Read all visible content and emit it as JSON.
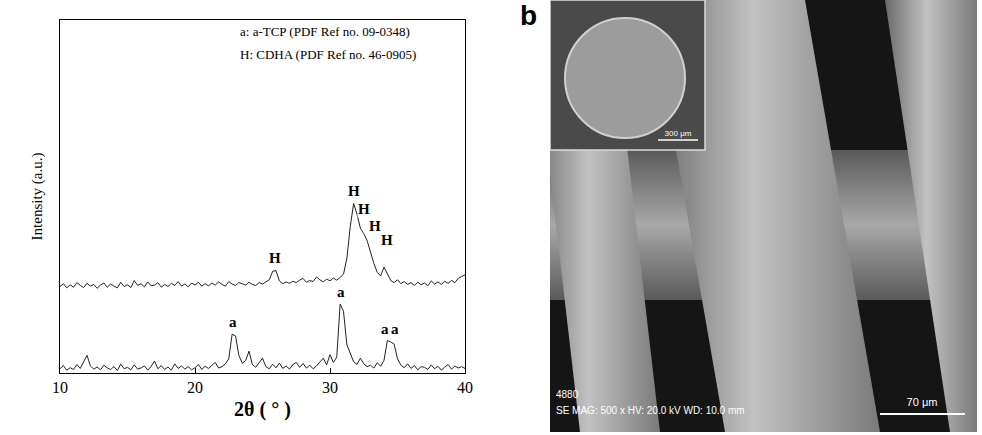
{
  "chart_data": {
    "type": "line",
    "panel": "a",
    "x_label": "2θ ( ° )",
    "y_label": "Intensity (a.u.)",
    "xlim": [
      10,
      40
    ],
    "xticks": [
      10,
      20,
      30,
      40
    ],
    "ylim": [
      0,
      100
    ],
    "grid": false,
    "tick_labels": "x",
    "key": [
      "a: a-TCP (PDF Ref no. 09-0348)",
      "H: CDHA (PDF Ref no. 46-0905)"
    ],
    "annotations": [
      {
        "text": "H",
        "x": 25.9,
        "y": 30
      },
      {
        "text": "H",
        "x": 31.75,
        "y": 49
      },
      {
        "text": "H",
        "x": 32.55,
        "y": 44
      },
      {
        "text": "H",
        "x": 33.3,
        "y": 39
      },
      {
        "text": "H",
        "x": 34.2,
        "y": 35
      },
      {
        "text": "a",
        "x": 22.85,
        "y": 12
      },
      {
        "text": "a",
        "x": 30.85,
        "y": 20.5
      },
      {
        "text": "a",
        "x": 34.1,
        "y": 10
      },
      {
        "text": "a",
        "x": 34.85,
        "y": 10
      }
    ],
    "x": [
      10,
      10.25,
      10.5,
      10.75,
      11,
      11.25,
      11.5,
      11.75,
      12,
      12.25,
      12.5,
      12.75,
      13,
      13.25,
      13.5,
      13.75,
      14,
      14.25,
      14.5,
      14.75,
      15,
      15.25,
      15.5,
      15.75,
      16,
      16.25,
      16.5,
      16.75,
      17,
      17.25,
      17.5,
      17.75,
      18,
      18.25,
      18.5,
      18.75,
      19,
      19.25,
      19.5,
      19.75,
      20,
      20.25,
      20.5,
      20.75,
      21,
      21.25,
      21.5,
      21.75,
      22,
      22.25,
      22.5,
      22.75,
      23,
      23.25,
      23.5,
      23.75,
      24,
      24.25,
      24.5,
      24.75,
      25,
      25.25,
      25.5,
      25.75,
      26,
      26.25,
      26.5,
      26.75,
      27,
      27.25,
      27.5,
      27.75,
      28,
      28.25,
      28.5,
      28.75,
      29,
      29.25,
      29.5,
      29.75,
      30,
      30.25,
      30.5,
      30.75,
      31,
      31.25,
      31.5,
      31.75,
      32,
      32.25,
      32.5,
      32.75,
      33,
      33.25,
      33.5,
      33.75,
      34,
      34.25,
      34.5,
      34.75,
      35,
      35.25,
      35.5,
      35.75,
      36,
      36.25,
      36.5,
      36.75,
      37,
      37.25,
      37.5,
      37.75,
      38,
      38.25,
      38.5,
      38.75,
      39,
      39.25,
      39.5,
      39.75,
      40
    ],
    "series": [
      {
        "color": "#222222",
        "values": [
          24.5,
          25.3,
          24.1,
          25.0,
          24.3,
          25.6,
          24.8,
          24.2,
          25.4,
          24.6,
          25.1,
          24.0,
          24.9,
          25.5,
          24.3,
          25.2,
          24.6,
          24.1,
          25.7,
          24.5,
          25.0,
          24.2,
          26.2,
          24.8,
          25.3,
          24.4,
          25.8,
          24.7,
          24.9,
          25.6,
          24.3,
          25.1,
          24.5,
          25.4,
          24.8,
          25.9,
          24.6,
          25.2,
          24.4,
          25.5,
          24.9,
          25.7,
          24.6,
          25.3,
          24.7,
          25.5,
          24.9,
          25.8,
          25.1,
          24.6,
          25.9,
          25.2,
          24.8,
          25.6,
          25.3,
          24.9,
          25.7,
          25.1,
          24.8,
          25.6,
          25.2,
          25.9,
          26.4,
          28.8,
          29.0,
          26.1,
          25.3,
          25.8,
          25.4,
          26.0,
          25.6,
          26.3,
          26.8,
          25.7,
          26.2,
          25.9,
          27.2,
          26.4,
          25.8,
          26.6,
          26.1,
          26.9,
          26.3,
          27.1,
          28.0,
          32.5,
          41.5,
          48.0,
          45.0,
          41.0,
          39.5,
          37.5,
          34.0,
          31.0,
          28.5,
          27.5,
          30.0,
          28.0,
          26.2,
          25.6,
          26.4,
          25.3,
          25.9,
          25.1,
          25.6,
          24.8,
          25.7,
          25.0,
          25.5,
          24.7,
          26.1,
          25.2,
          25.8,
          25.1,
          26.0,
          25.4,
          26.2,
          25.6,
          26.8,
          27.3,
          27.8
        ]
      },
      {
        "color": "#222222",
        "values": [
          1.2,
          2.1,
          0.8,
          1.5,
          1.0,
          2.4,
          1.3,
          3.2,
          5.0,
          2.0,
          1.1,
          1.7,
          0.9,
          2.2,
          1.4,
          1.0,
          1.8,
          0.7,
          2.5,
          1.2,
          1.6,
          0.9,
          2.3,
          1.1,
          1.4,
          2.0,
          0.8,
          1.9,
          3.4,
          1.2,
          2.1,
          1.0,
          1.7,
          0.8,
          2.6,
          1.3,
          2.0,
          1.1,
          1.8,
          0.9,
          1.5,
          2.4,
          1.0,
          1.9,
          1.3,
          2.2,
          3.0,
          1.4,
          1.8,
          2.6,
          4.0,
          11.0,
          10.5,
          5.0,
          2.8,
          3.5,
          6.2,
          2.4,
          1.6,
          2.9,
          4.2,
          1.8,
          1.2,
          2.5,
          1.5,
          2.8,
          1.3,
          2.0,
          1.1,
          2.4,
          3.0,
          1.6,
          2.7,
          1.4,
          2.2,
          1.2,
          2.0,
          3.1,
          4.2,
          2.3,
          5.2,
          3.0,
          4.5,
          19.5,
          17.5,
          8.0,
          5.8,
          3.2,
          2.4,
          4.2,
          2.6,
          1.8,
          2.2,
          1.4,
          2.9,
          1.9,
          3.6,
          9.2,
          8.8,
          8.2,
          4.0,
          2.2,
          1.5,
          2.6,
          1.3,
          2.1,
          0.9,
          1.8,
          1.6,
          1.0,
          2.3,
          1.2,
          1.9,
          0.8,
          1.7,
          2.4,
          1.1,
          2.0,
          1.4,
          1.8,
          1.3
        ]
      }
    ]
  },
  "micrograph": {
    "panel": "b",
    "id": "4880",
    "info": "SE MAG: 500 x HV: 20.0 kV WD: 10.0 mm",
    "scale_bar": "70 μm",
    "inset_scale_bar": "300 μm"
  }
}
